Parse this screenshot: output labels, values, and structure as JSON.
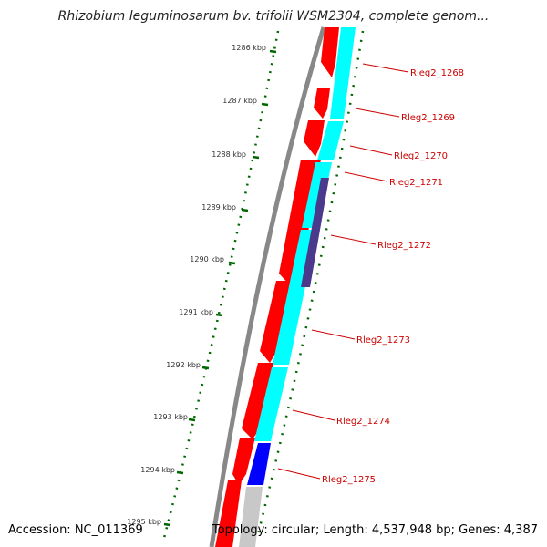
{
  "title": "Rhizobium leguminosarum bv. trifolii WSM2304, complete genom...",
  "footer": {
    "accession": "Accession: NC_011369",
    "topology": "Topology: circular; Length: 4,537,948 bp; Genes: 4,387"
  },
  "ticks": [
    {
      "label": "1286 kbp"
    },
    {
      "label": "1287 kbp"
    },
    {
      "label": "1288 kbp"
    },
    {
      "label": "1289 kbp"
    },
    {
      "label": "1290 kbp"
    },
    {
      "label": "1291 kbp"
    },
    {
      "label": "1292 kbp"
    },
    {
      "label": "1293 kbp"
    },
    {
      "label": "1294 kbp"
    },
    {
      "label": "1295 kbp"
    }
  ],
  "genes": [
    {
      "label": "Rleg2_1268"
    },
    {
      "label": "Rleg2_1269"
    },
    {
      "label": "Rleg2_1270"
    },
    {
      "label": "Rleg2_1271"
    },
    {
      "label": "Rleg2_1272"
    },
    {
      "label": "Rleg2_1273"
    },
    {
      "label": "Rleg2_1274"
    },
    {
      "label": "Rleg2_1275"
    }
  ],
  "colors": {
    "cds": "#ff0000",
    "feature": "#00ffff",
    "highlight_dark": "#4b3a8c",
    "highlight_blue": "#0000ff",
    "backbone": "#777777",
    "tick": "#006600",
    "label": "#cc0000"
  }
}
